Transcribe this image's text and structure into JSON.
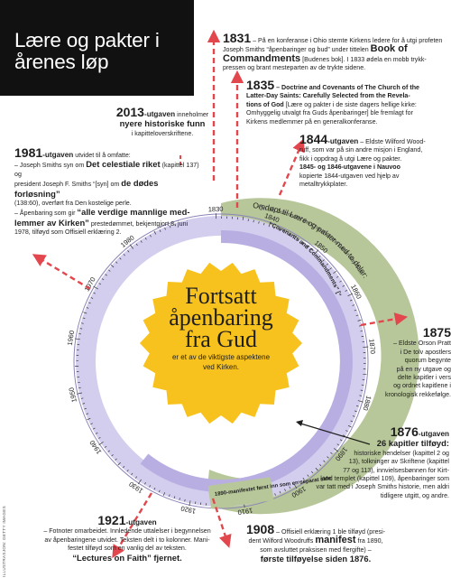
{
  "title": "Lære og pakter i årenes løp",
  "center": {
    "line1": "Fortsatt",
    "line2": "åpenbaring",
    "line3": "fra Gud",
    "sub1": "er et av de viktigste aspektene",
    "sub2": "ved Kirken."
  },
  "colors": {
    "purple_ring": "#b8aee2",
    "purple_light": "#d3cdee",
    "green_ring": "#b7c79a",
    "sun": "#f7c21d",
    "arrow": "#e2474e",
    "title_bg": "#111111"
  },
  "ring_years": {
    "labels": [
      "1830",
      "1840",
      "1850",
      "1860",
      "1870",
      "1880",
      "1890",
      "1900",
      "1910",
      "1920",
      "1930",
      "1940",
      "1950",
      "1960",
      "1970",
      "1980"
    ]
  },
  "ring_text": {
    "green": "Omdøpt til Lære og pakter med to deler:",
    "purple_outer": "“On the Doctrine of the Church of the Latter-day Saints” [“Om læren i de siste dagers hellige kirke”] (Lectures on Faith)",
    "purple_inner": "“Covenants and Commandments” [“Pakter og bud”]",
    "manifest": "1890-manifestet først inn som en separat side"
  },
  "notes": {
    "n1831": {
      "year": "1831",
      "l1": "– På en konferanse i Ohio stemte Kirkens ledere for å utgi profeten",
      "l2": "Joseph Smiths “åpenbaringer og bud” under tittelen",
      "l2b": "Book of",
      "l3": "Commandments",
      "l3b": "[Budenes bok]. I 1833 ødela en mobb trykk-",
      "l4": "pressen og brant mesteparten av de trykte sidene."
    },
    "n1835": {
      "year": "1835",
      "h1": "– Doctrine and Covenants of The Church of the",
      "h2": "Latter-Day Saints: Carefully Selected from the Revela-",
      "h3": "tions of God",
      "l1": "[Lære og pakter i de siste dagers hellige kirke:",
      "l2": "Omhyggelig utvalgt fra Guds åpenbaringer] ble fremlagt for",
      "l3": "Kirkens medlemmer på en generalkonferanse."
    },
    "n2013": {
      "year": "2013",
      "ed": "-utgaven",
      "l1": "inneholmer",
      "l2": "nyere historiske funn",
      "l3": "i kapitteloverskriftene."
    },
    "n1844": {
      "year": "1844",
      "ed": "-utgaven",
      "l1": "– Eldste Wilford Wood-",
      "l2": "ruff, som var på sin andre misjon i England,",
      "l3": "fikk i oppdrag å utgi Lære og pakter.",
      "l4": "1845- og 1846-utgavene i Nauvoo",
      "l5": "kopierte 1844-utgaven ved hjelp av",
      "l6": "metalltrykkplater."
    },
    "n1981": {
      "year": "1981",
      "ed": "-utgaven",
      "l1a": "utvidet til å omfatte:",
      "l2a": "– Joseph Smiths syn om",
      "l2b": "Det celestiale riket",
      "l2c": "(kapittel 137) og",
      "l3a": "president Joseph F. Smiths “[syn] om",
      "l3b": "de dødes forløsning”",
      "l4": "(138:60), overført fra Den kostelige perle.",
      "l5a": "– Åpenbaring som gir",
      "l5b": "“alle verdige mannlige med-",
      "l6a": "lemmer av Kirken”",
      "l6b": "prestedømmet, bekjentgjort 8. juni",
      "l7": "1978, tilføyd som Offisiell erklæring 2."
    },
    "n1875": {
      "year": "1875",
      "l1": "– Eldste Orson Pratt",
      "l2": "i De tolv apostlers",
      "l3": "quorum begynte",
      "l4": "på en ny utgave og",
      "l5": "delte kapitler i vers",
      "l6": "og ordnet kapitlene i",
      "l7": "kronologisk rekkefølge."
    },
    "n1876": {
      "year": "1876",
      "ed": "-utgaven",
      "h": "26 kapitler tilføyd:",
      "l1": "historiske hendelser (kapittel 2 og",
      "l2": "13), tolkninger av Skriftene (kapittel",
      "l3": "77 og 113), innvielsesbønnen for Kirt-",
      "l4": "land templet (kapittel 109), åpenbaringer som",
      "l5": "var tatt med i Joseph Smiths historie, men aldri",
      "l6": "tidligere utgitt, og andre."
    },
    "n1921": {
      "year": "1921",
      "ed": "-utgaven",
      "l1": "– Fotnoter omarbeidet. Innledende uttalelser i begynnelsen",
      "l2": "av åpenbaringene utvidet. Teksten delt i to kolonner. Mani-",
      "l3": "festet tilføyd som en vanlig del av teksten.",
      "l4": "“Lectures on Faith” fjernet."
    },
    "n1908": {
      "year": "1908",
      "l1": "– Offisiell erklæring 1 ble tilføyd (presi-",
      "l2a": "dent Wilford Woodruffs",
      "l2b": "manifest",
      "l2c": "fra 1890,",
      "l3": "som avsluttet praksisen med flergifte) –",
      "l4": "første tilføyelse siden 1876."
    }
  },
  "credit": "ILLUSTRASJON: GETTY IMAGES"
}
